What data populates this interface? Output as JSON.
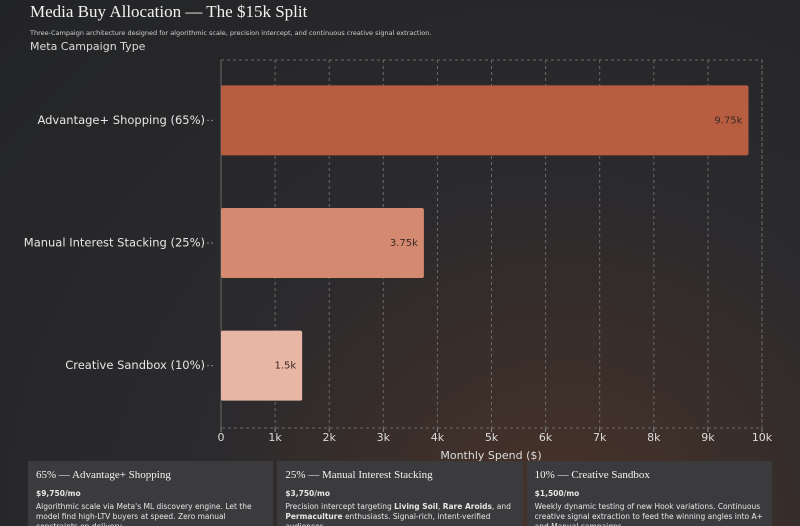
{
  "chart_data": {
    "type": "bar",
    "orientation": "horizontal",
    "title": "Media Buy Allocation — The $15k Split",
    "subtitle": "Three-Campaign architecture designed for algorithmic scale, precision intercept, and continuous creative signal extraction.",
    "y_label": "Meta Campaign Type",
    "x_label": "Monthly Spend ($)",
    "categories": [
      "Advantage+ Shopping (65%)",
      "Manual Interest Stacking (25%)",
      "Creative Sandbox (10%)"
    ],
    "values": [
      9750,
      3750,
      1500
    ],
    "value_labels": [
      "9.75k",
      "3.75k",
      "1.5k"
    ],
    "colors": [
      "#b95d41",
      "#d48a70",
      "#e8b6a4"
    ],
    "xlim": [
      0,
      10000
    ],
    "xticks": [
      0,
      {
        "value": 1000,
        "label": "1k"
      },
      {
        "value": 2000,
        "label": "2k"
      },
      {
        "value": 3000,
        "label": "3k"
      },
      {
        "value": 4000,
        "label": "4k"
      },
      {
        "value": 5000,
        "label": "5k"
      },
      {
        "value": 6000,
        "label": "6k"
      },
      {
        "value": 7000,
        "label": "7k"
      },
      {
        "value": 8000,
        "label": "8k"
      },
      {
        "value": 9000,
        "label": "9k"
      },
      {
        "value": 10000,
        "label": "10k"
      }
    ],
    "grid": true
  },
  "cards": [
    {
      "title": "65% — Advantage+ Shopping",
      "price": "$9,750/mo",
      "desc": [
        {
          "text": "Algorithmic scale via Meta's ML discovery engine. Let the model find high-LTV buyers at speed. Zero manual constraints on delivery."
        }
      ]
    },
    {
      "title": "25% — Manual Interest Stacking",
      "price": "$3,750/mo",
      "desc": [
        {
          "text": "Precision intercept targeting "
        },
        {
          "text": "Living Soil",
          "bold": true
        },
        {
          "text": ", "
        },
        {
          "text": "Rare Aroids",
          "bold": true
        },
        {
          "text": ", and "
        },
        {
          "text": "Permaculture",
          "bold": true
        },
        {
          "text": " enthusiasts. Signal-rich, intent-verified audiences."
        }
      ]
    },
    {
      "title": "10% — Creative Sandbox",
      "price": "$1,500/mo",
      "desc": [
        {
          "text": "Weekly dynamic testing of new Hook variations. Continuous creative signal extraction to feed the winning angles into A+ and Manual campaigns."
        }
      ]
    }
  ]
}
